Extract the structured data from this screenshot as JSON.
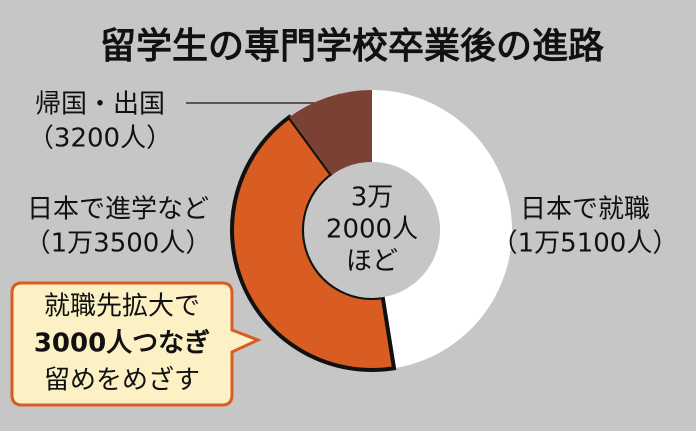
{
  "chart_data": {
    "type": "donut",
    "title": "留学生の専門学校卒業後の進路",
    "categories": [
      "日本で就職",
      "日本で進学など",
      "帰国・出国"
    ],
    "values": [
      15100,
      13500,
      3200
    ],
    "value_labels": [
      "（1万5100人）",
      "（1万3500人）",
      "（3200人）"
    ],
    "colors": [
      "#ffffff",
      "#d95c22",
      "#7b4135"
    ],
    "center_label": [
      "3万",
      "2000人",
      "ほど"
    ],
    "callout": [
      "就職先拡大で",
      "3000人つなぎ",
      "留めをめざす"
    ]
  }
}
